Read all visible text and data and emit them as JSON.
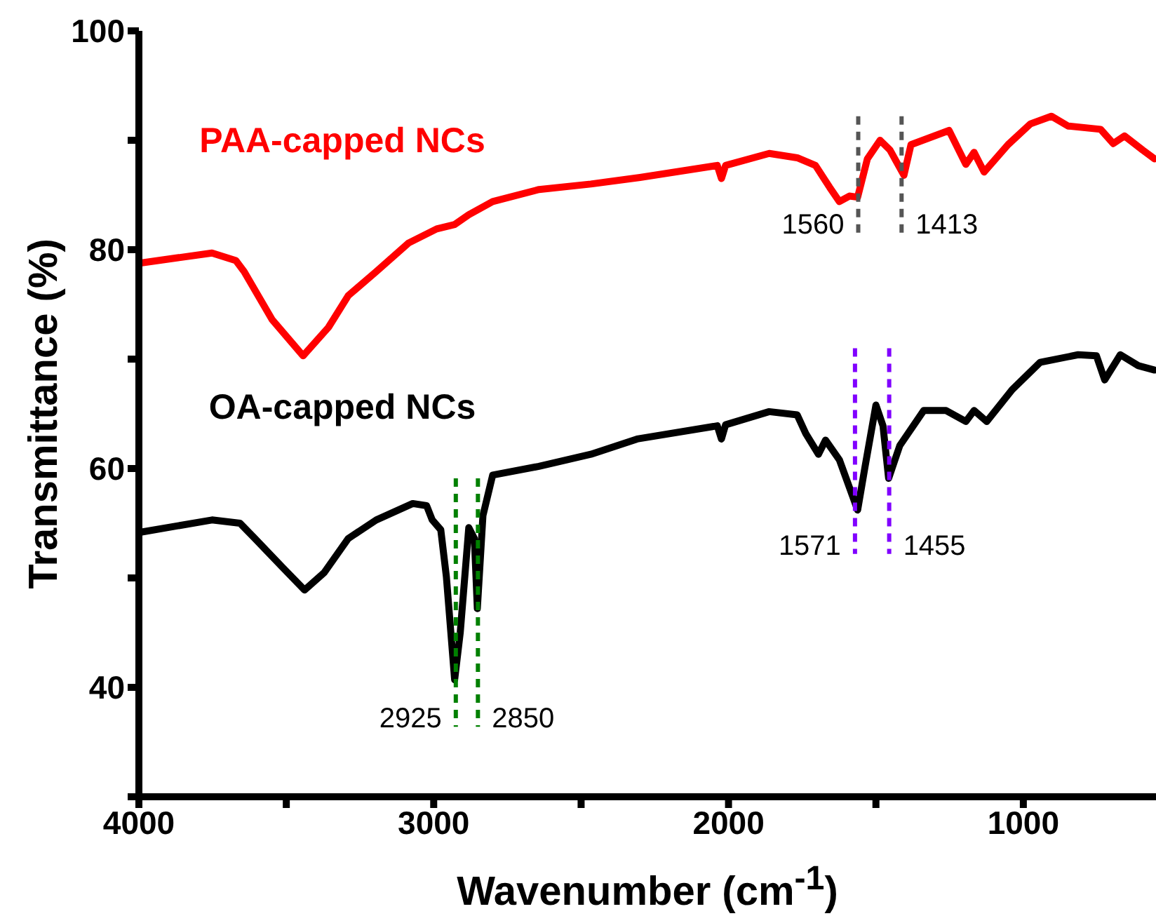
{
  "chart_data": {
    "type": "line",
    "xlabel": "Wavenumber (cm$^{-1}$)",
    "ylabel": "Transmittance (%)",
    "xlim": [
      4000,
      550
    ],
    "xticks": [
      4000,
      {
        "value": 3500,
        "label": null
      },
      3000,
      {
        "value": 2500,
        "label": null
      },
      2000,
      {
        "value": 1500,
        "label": null
      },
      1000
    ],
    "ylim": [
      30,
      100
    ],
    "yticks": [
      {
        "value": 30,
        "label": null
      },
      40,
      {
        "value": 50,
        "label": null
      },
      60,
      {
        "value": 70,
        "label": null
      },
      80,
      {
        "value": 90,
        "label": null
      },
      100
    ],
    "series": [
      {
        "name": "PAA-capped NCs",
        "color": "#ff0000",
        "x": [
          3990,
          3752,
          3671,
          3643,
          3548,
          3443,
          3357,
          3290,
          3195,
          3086,
          2990,
          2929,
          2881,
          2800,
          2643,
          2467,
          2300,
          2038,
          2024,
          2010,
          1862,
          1767,
          1705,
          1657,
          1624,
          1590,
          1562,
          1529,
          1486,
          1452,
          1405,
          1381,
          1252,
          1195,
          1167,
          1133,
          1052,
          976,
          905,
          848,
          738,
          695,
          657,
          595,
          555
        ],
        "values": [
          78.8,
          79.7,
          79.0,
          78.0,
          73.6,
          70.3,
          72.9,
          75.8,
          78.0,
          80.6,
          81.9,
          82.3,
          83.2,
          84.4,
          85.5,
          86.0,
          86.6,
          87.7,
          86.5,
          87.7,
          88.8,
          88.4,
          87.7,
          85.7,
          84.4,
          84.9,
          84.8,
          88.3,
          90.0,
          89.1,
          86.8,
          89.6,
          90.9,
          87.8,
          88.9,
          87.1,
          89.6,
          91.5,
          92.2,
          91.3,
          91.0,
          89.7,
          90.4,
          89.1,
          88.3
        ]
      },
      {
        "name": "OA-capped NCs",
        "color": "#000000",
        "x": [
          3990,
          3752,
          3657,
          3610,
          3514,
          3438,
          3371,
          3290,
          3195,
          3071,
          3024,
          3005,
          2976,
          2957,
          2929,
          2910,
          2881,
          2862,
          2852,
          2833,
          2800,
          2643,
          2467,
          2310,
          2038,
          2024,
          2010,
          1862,
          1767,
          1738,
          1695,
          1671,
          1624,
          1562,
          1538,
          1500,
          1476,
          1457,
          1419,
          1338,
          1262,
          1195,
          1167,
          1124,
          1038,
          943,
          814,
          752,
          724,
          671,
          610,
          555
        ],
        "values": [
          54.2,
          55.3,
          55.0,
          53.7,
          51.0,
          48.9,
          50.5,
          53.6,
          55.3,
          56.8,
          56.6,
          55.3,
          54.4,
          50.1,
          40.7,
          45.0,
          54.6,
          53.6,
          47.2,
          55.7,
          59.4,
          60.2,
          61.3,
          62.7,
          63.9,
          62.7,
          64.0,
          65.2,
          64.9,
          63.2,
          61.3,
          62.6,
          60.8,
          56.2,
          60.0,
          65.8,
          63.9,
          59.1,
          62.1,
          65.3,
          65.3,
          64.3,
          65.3,
          64.3,
          67.2,
          69.7,
          70.4,
          70.3,
          68.1,
          70.4,
          69.4,
          69.0
        ]
      },
      {
        "color": "#555555",
        "line_style": "dashed",
        "x": [
          1560,
          1560
        ],
        "values": [
          92.2,
          81.5
        ]
      },
      {
        "color": "#555555",
        "line_style": "dashed",
        "x": [
          1413,
          1413
        ],
        "values": [
          92.2,
          81.5
        ]
      },
      {
        "color": "#8000ff",
        "line_style": "dashed",
        "x": [
          1571,
          1571
        ],
        "values": [
          71.0,
          52.2
        ]
      },
      {
        "color": "#8000ff",
        "line_style": "dashed",
        "x": [
          1455,
          1455
        ],
        "values": [
          71.0,
          52.2
        ]
      },
      {
        "color": "#008000",
        "line_style": "dashed",
        "x": [
          2925,
          2925
        ],
        "values": [
          59.1,
          36.4
        ]
      },
      {
        "color": "#008000",
        "line_style": "dashed",
        "x": [
          2850,
          2850
        ],
        "values": [
          59.1,
          36.4
        ]
      }
    ],
    "annotations": [
      {
        "text": "1560",
        "x": 1560,
        "y": 81.5
      },
      {
        "text": "1413",
        "x": 1413,
        "y": 81.5
      },
      {
        "text": "1571",
        "x": 1571,
        "y": 52.2
      },
      {
        "text": "1455",
        "x": 1455,
        "y": 52.2
      },
      {
        "text": "2925",
        "x": 2925,
        "y": 36.4
      },
      {
        "text": "2850",
        "x": 2850,
        "y": 36.4
      }
    ]
  }
}
